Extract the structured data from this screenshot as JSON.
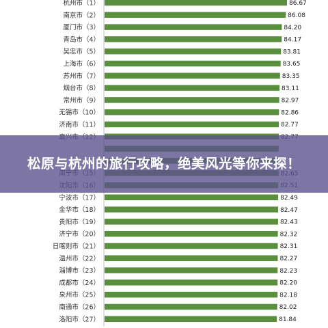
{
  "banner": {
    "title": "松原与杭州的旅行攻略，绝美风光等你来探！"
  },
  "chart_data": {
    "type": "bar",
    "orientation": "horizontal",
    "title": "",
    "xlabel": "",
    "ylabel": "",
    "xlim": [
      0,
      87
    ],
    "grid": false,
    "legend": "none",
    "bar_color": "#5a8f3d",
    "categories": [
      "杭州市（1）",
      "南京市（2）",
      "厦门市（3）",
      "青岛市（4）",
      "吴忠市（5）",
      "上海市（6）",
      "苏州市（7）",
      "烟台市（8）",
      "常州市（9）",
      "无锡市（10）",
      "济南市（11）",
      "嘉兴市（12）",
      "",
      "",
      "南宁市（15）",
      "沈阳市（16）",
      "宁波市（17）",
      "金华市（18）",
      "贵阳市（19）",
      "济宁市（20）",
      "日喀则市（21）",
      "温州市（22）",
      "淄博市（23）",
      "成都市（24）",
      "泉州市（25）",
      "南通市（26）",
      "洛阳市（27）"
    ],
    "values": [
      86.67,
      86.08,
      84.2,
      84.17,
      83.81,
      83.65,
      83.35,
      83.11,
      82.97,
      82.86,
      82.77,
      82.77,
      82.7,
      82.68,
      82.65,
      82.51,
      82.49,
      82.47,
      82.43,
      82.32,
      82.31,
      82.27,
      82.23,
      82.2,
      82.18,
      82.02,
      81.84
    ],
    "value_labels": [
      "86.67",
      "86.08",
      "84.20",
      "84.17",
      "83.81",
      "83.65",
      "83.35",
      "83.11",
      "82.97",
      "82.86",
      "82.77",
      "82.77",
      "",
      "",
      "82.65",
      "82.51",
      "82.49",
      "82.47",
      "82.43",
      "82.32",
      "82.31",
      "82.27",
      "82.23",
      "82.20",
      "82.18",
      "82.02",
      "81.84"
    ]
  }
}
